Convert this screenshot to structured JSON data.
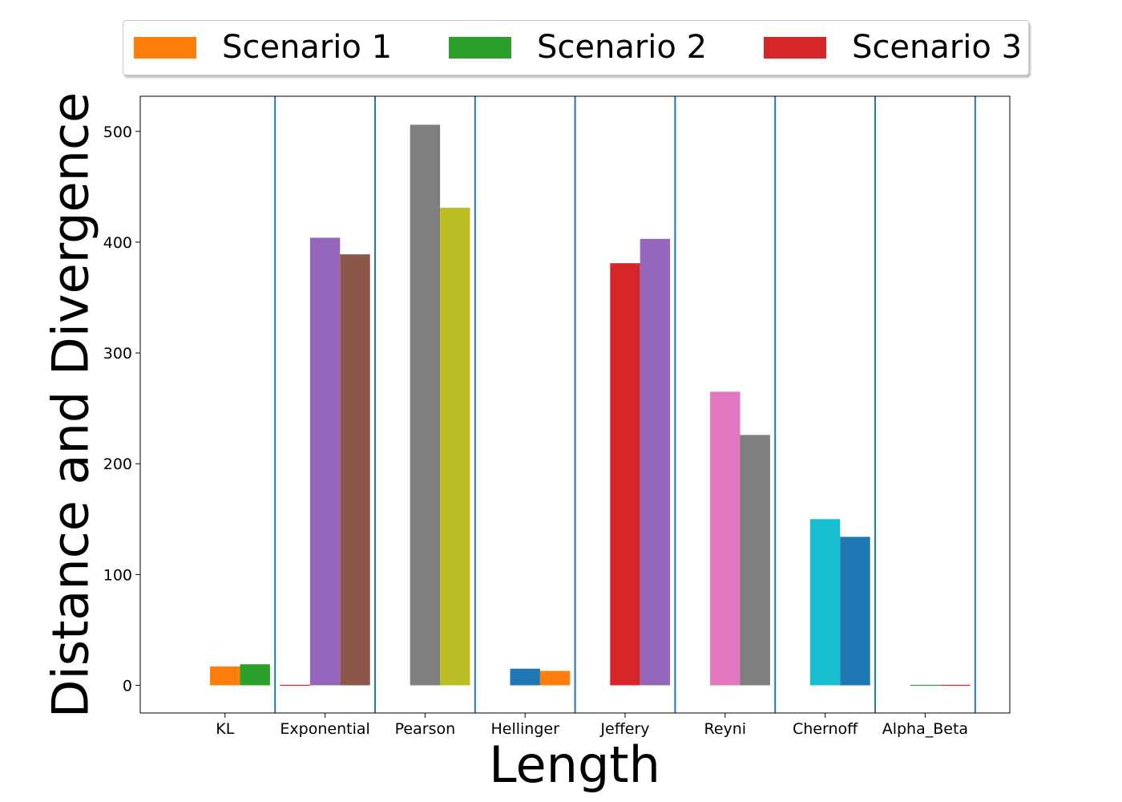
{
  "chart_data": {
    "type": "bar",
    "xlabel": "Length",
    "ylabel": "Distance and Divergence",
    "ylim": [
      -25,
      530
    ],
    "yticks": [
      0,
      100,
      200,
      300,
      400,
      500
    ],
    "grid": false,
    "legend_placement": "top-center",
    "legend": [
      {
        "label": "Scenario 1",
        "color": "#ff7f0e"
      },
      {
        "label": "Scenario 2",
        "color": "#2ca02c"
      },
      {
        "label": "Scenario 3",
        "color": "#d62728"
      }
    ],
    "categories": [
      "KL",
      "Exponential",
      "Pearson",
      "Hellinger",
      "Jeffery",
      "Reyni",
      "Chernoff",
      "Alpha_Beta"
    ],
    "groups": [
      {
        "category": "KL",
        "bars": [
          {
            "value": 0,
            "color": "#1f77b4"
          },
          {
            "value": 17,
            "color": "#ff7f0e"
          },
          {
            "value": 19,
            "color": "#2ca02c"
          }
        ]
      },
      {
        "category": "Exponential",
        "bars": [
          {
            "value": 0.5,
            "color": "#d62728"
          },
          {
            "value": 404,
            "color": "#9467bd"
          },
          {
            "value": 389,
            "color": "#8c564b"
          }
        ]
      },
      {
        "category": "Pearson",
        "bars": [
          {
            "value": 0,
            "color": "#e377c2"
          },
          {
            "value": 506,
            "color": "#7f7f7f"
          },
          {
            "value": 431,
            "color": "#bcbd22"
          }
        ]
      },
      {
        "category": "Hellinger",
        "bars": [
          {
            "value": 0,
            "color": "#17becf"
          },
          {
            "value": 15,
            "color": "#1f77b4"
          },
          {
            "value": 13,
            "color": "#ff7f0e"
          }
        ]
      },
      {
        "category": "Jeffery",
        "bars": [
          {
            "value": 0,
            "color": "#2ca02c"
          },
          {
            "value": 381,
            "color": "#d62728"
          },
          {
            "value": 403,
            "color": "#9467bd"
          }
        ]
      },
      {
        "category": "Reyni",
        "bars": [
          {
            "value": 0,
            "color": "#8c564b"
          },
          {
            "value": 265,
            "color": "#e377c2"
          },
          {
            "value": 226,
            "color": "#7f7f7f"
          }
        ]
      },
      {
        "category": "Chernoff",
        "bars": [
          {
            "value": 0,
            "color": "#bcbd22"
          },
          {
            "value": 150,
            "color": "#17becf"
          },
          {
            "value": 134,
            "color": "#1f77b4"
          }
        ]
      },
      {
        "category": "Alpha_Beta",
        "bars": [
          {
            "value": 0,
            "color": "#ff7f0e"
          },
          {
            "value": 0.5,
            "color": "#2ca02c"
          },
          {
            "value": 0.5,
            "color": "#d62728"
          }
        ]
      }
    ],
    "separator_color": "#1f77b4"
  }
}
